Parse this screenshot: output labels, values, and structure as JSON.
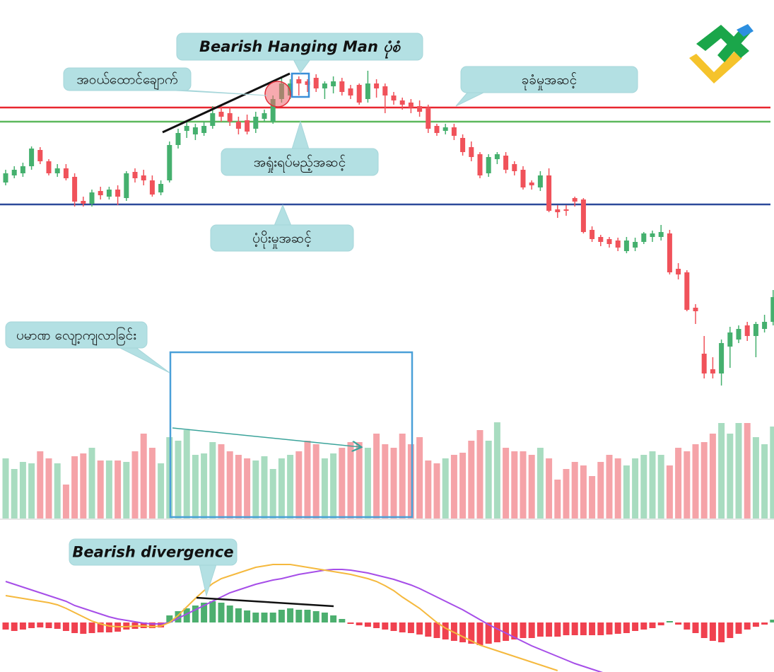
{
  "chart_data": [
    {
      "type": "candlestick",
      "open": [
        302,
        312,
        315,
        325,
        348,
        332,
        315,
        322,
        310,
        276,
        272,
        290,
        282,
        292,
        280,
        317,
        312,
        305,
        288,
        305,
        355,
        375,
        370,
        372,
        382,
        402,
        400,
        388,
        390,
        378,
        392,
        388,
        420,
        425,
        448,
        445,
        450,
        435,
        438,
        445,
        435,
        440,
        420,
        442,
        438,
        425,
        418,
        415,
        410,
        408,
        382,
        375,
        380,
        365,
        352,
        342,
        315,
        335,
        340,
        328,
        320,
        302,
        295,
        312,
        264,
        264,
        280,
        278,
        235,
        225,
        222,
        220,
        205,
        210,
        218,
        225,
        225,
        230,
        180,
        175,
        125,
        60,
        38,
        32,
        70,
        80,
        100,
        85,
        95,
        105
      ],
      "high": [
        320,
        325,
        330,
        353,
        352,
        335,
        328,
        328,
        315,
        282,
        292,
        296,
        296,
        298,
        318,
        322,
        320,
        312,
        305,
        360,
        378,
        387,
        385,
        388,
        410,
        410,
        408,
        395,
        398,
        402,
        405,
        425,
        450,
        448,
        452,
        448,
        455,
        445,
        452,
        450,
        440,
        442,
        460,
        448,
        442,
        430,
        422,
        420,
        418,
        412,
        385,
        385,
        385,
        370,
        360,
        345,
        342,
        345,
        345,
        332,
        325,
        305,
        318,
        322,
        270,
        270,
        282,
        280,
        240,
        228,
        225,
        224,
        225,
        224,
        232,
        234,
        242,
        235,
        188,
        178,
        130,
        85,
        55,
        80,
        98,
        100,
        105,
        105,
        115,
        150
      ],
      "low": [
        298,
        308,
        310,
        320,
        328,
        312,
        310,
        305,
        268,
        268,
        268,
        278,
        278,
        270,
        276,
        302,
        298,
        282,
        284,
        302,
        350,
        365,
        362,
        368,
        378,
        388,
        382,
        370,
        370,
        372,
        388,
        385,
        415,
        420,
        425,
        430,
        430,
        420,
        428,
        425,
        420,
        412,
        415,
        422,
        400,
        412,
        405,
        400,
        395,
        372,
        368,
        370,
        362,
        340,
        332,
        308,
        310,
        328,
        315,
        312,
        292,
        292,
        290,
        260,
        252,
        255,
        268,
        230,
        218,
        212,
        210,
        205,
        202,
        205,
        215,
        218,
        220,
        172,
        165,
        120,
        102,
        25,
        25,
        15,
        40,
        75,
        78,
        55,
        90,
        100
      ],
      "close": [
        315,
        320,
        325,
        350,
        332,
        315,
        322,
        308,
        275,
        272,
        288,
        284,
        292,
        282,
        315,
        308,
        305,
        285,
        300,
        355,
        372,
        382,
        380,
        382,
        400,
        395,
        388,
        378,
        374,
        395,
        400,
        420,
        442,
        442,
        442,
        440,
        435,
        442,
        445,
        430,
        425,
        415,
        442,
        435,
        425,
        418,
        412,
        408,
        402,
        378,
        372,
        380,
        368,
        345,
        338,
        312,
        338,
        342,
        320,
        318,
        295,
        298,
        312,
        262,
        260,
        262,
        275,
        232,
        222,
        218,
        215,
        210,
        220,
        218,
        230,
        230,
        232,
        175,
        172,
        122,
        120,
        32,
        32,
        75,
        90,
        95,
        85,
        102,
        105,
        140
      ],
      "up_color": "#45b06e",
      "down_color": "#f0525a",
      "ylim": [
        0,
        560
      ],
      "levels": [
        {
          "value": 408,
          "color": "#e8262f"
        },
        {
          "value": 388,
          "color": "#5cb85c"
        },
        {
          "value": 271,
          "color": "#2c4a9a"
        }
      ],
      "annotations": [
        "Bearish Hanging Man ပုံစံ",
        "အဝယ်ထောင်ချောက်",
        "ခုခံမှုအဆင့်",
        "အရှုံးရပ်မည့်အဆင့်",
        "ပံ့ပိုးမှုအဆင့်"
      ]
    },
    {
      "type": "volume",
      "values": [
        85,
        70,
        80,
        78,
        95,
        85,
        78,
        48,
        88,
        92,
        100,
        82,
        82,
        82,
        80,
        95,
        120,
        100,
        78,
        115,
        110,
        125,
        90,
        92,
        108,
        105,
        95,
        90,
        85,
        82,
        88,
        70,
        85,
        90,
        95,
        110,
        105,
        85,
        92,
        100,
        108,
        108,
        100,
        120,
        105,
        100,
        120,
        105,
        115,
        82,
        78,
        85,
        90,
        93,
        110,
        125,
        110,
        136,
        100,
        95,
        95,
        90,
        100,
        85,
        55,
        70,
        80,
        75,
        60,
        80,
        90,
        85,
        75,
        85,
        90,
        95,
        90,
        75,
        100,
        95,
        105,
        108,
        120,
        135,
        120,
        135,
        135,
        115,
        105,
        130
      ],
      "up_color": "#a8dcc0",
      "down_color": "#f5a3a8",
      "ylim": [
        0,
        150
      ],
      "annotations": [
        "ပမာဏ လျော့ကျလာခြင်း"
      ]
    },
    {
      "type": "macd",
      "histogram": [
        -10,
        -12,
        -10,
        -8,
        -7,
        -8,
        -9,
        -12,
        -15,
        -16,
        -15,
        -14,
        -14,
        -13,
        -10,
        -9,
        -8,
        -8,
        -7,
        10,
        16,
        20,
        24,
        28,
        30,
        28,
        24,
        20,
        17,
        14,
        14,
        14,
        18,
        20,
        18,
        18,
        16,
        14,
        10,
        5,
        -2,
        -4,
        -6,
        -8,
        -10,
        -12,
        -14,
        -15,
        -17,
        -20,
        -22,
        -24,
        -26,
        -28,
        -30,
        -32,
        -30,
        -28,
        -26,
        -24,
        -22,
        -22,
        -20,
        -20,
        -20,
        -18,
        -18,
        -18,
        -18,
        -18,
        -17,
        -16,
        -15,
        -12,
        -10,
        -8,
        -4,
        2,
        -3,
        -10,
        -15,
        -22,
        -26,
        -28,
        -22,
        -16,
        -10,
        -6,
        -3,
        4
      ],
      "up_color": "#4caf6f",
      "down_color": "#f0414f",
      "series": [
        {
          "color": "#a64ee8",
          "values": [
            58,
            54,
            50,
            46,
            42,
            38,
            34,
            30,
            24,
            20,
            16,
            12,
            8,
            5,
            3,
            1,
            -1,
            -2,
            -2,
            0,
            6,
            12,
            18,
            24,
            30,
            36,
            42,
            46,
            50,
            54,
            57,
            60,
            62,
            65,
            68,
            70,
            72,
            74,
            75,
            75,
            74,
            72,
            70,
            67,
            64,
            61,
            57,
            53,
            48,
            42,
            36,
            30,
            24,
            18,
            11,
            4,
            -3,
            -9,
            -15,
            -21,
            -27,
            -33,
            -38,
            -43,
            -48,
            -53,
            -58,
            -62,
            -66,
            -70,
            -74,
            null,
            null,
            null,
            null,
            null,
            null,
            null,
            null,
            null,
            null,
            null,
            null,
            null,
            null,
            null,
            null,
            null,
            null,
            null
          ]
        },
        {
          "color": "#f5b93e",
          "values": [
            38,
            36,
            34,
            32,
            30,
            28,
            25,
            20,
            14,
            8,
            2,
            -2,
            -5,
            -6,
            -6,
            -5,
            -5,
            -6,
            -5,
            0,
            10,
            22,
            34,
            45,
            55,
            62,
            66,
            70,
            74,
            78,
            80,
            82,
            82,
            82,
            80,
            78,
            76,
            74,
            72,
            70,
            68,
            65,
            62,
            58,
            52,
            45,
            36,
            28,
            20,
            10,
            0,
            -8,
            -14,
            -20,
            -26,
            -32,
            -36,
            -40,
            -44,
            -48,
            -52,
            -56,
            -60,
            -64,
            -68,
            null,
            null,
            null,
            null,
            null,
            null,
            null,
            null,
            null,
            null,
            null,
            null,
            null,
            null,
            null,
            null,
            null,
            null,
            null,
            null,
            null,
            null,
            null,
            null,
            null
          ]
        }
      ],
      "ylim": [
        -70,
        85
      ],
      "annotations": [
        "Bearish divergence"
      ]
    }
  ]
}
